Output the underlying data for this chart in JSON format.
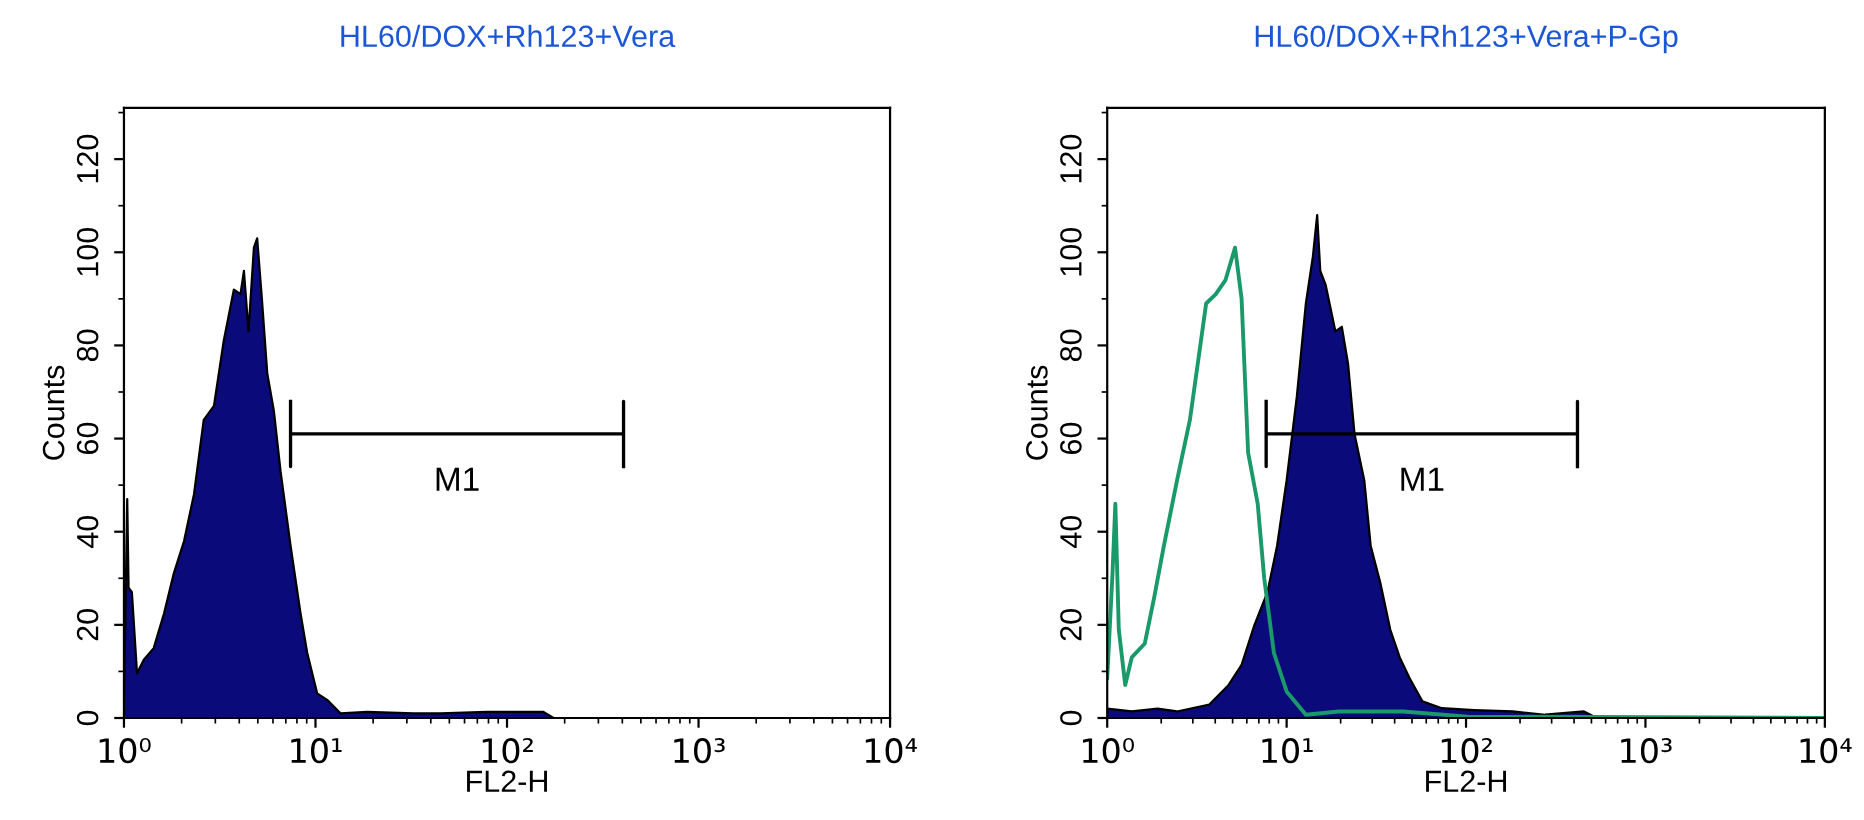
{
  "chart_data": [
    {
      "type": "area",
      "title": "HL60/DOX+Rh123+Vera",
      "xlabel": "FL2-H",
      "ylabel": "Counts",
      "log": "x",
      "xlim": [
        1,
        10000
      ],
      "ylim": [
        0,
        131
      ],
      "xticks": [
        {
          "value": 1,
          "label": "10⁰"
        },
        {
          "value": 10,
          "label": "10¹"
        },
        {
          "value": 100,
          "label": "10²"
        },
        {
          "value": 1000,
          "label": "10³"
        },
        {
          "value": 10000,
          "label": "10⁴"
        }
      ],
      "yticks": [
        0,
        20,
        40,
        60,
        80,
        100,
        120
      ],
      "series": [
        {
          "color": "#0a0a7a",
          "x": [
            1.0,
            1.04,
            1.057,
            1.1,
            1.17,
            1.27,
            1.43,
            1.62,
            1.82,
            2.06,
            2.32,
            2.61,
            2.95,
            3.32,
            3.75,
            4.06,
            4.23,
            4.47,
            4.77,
            4.96,
            5.25,
            5.6,
            6.06,
            6.57,
            7.41,
            8.35,
            9.05,
            10.2,
            11.5,
            13.5,
            18.6,
            32.6,
            44.9,
            78.7,
            155,
            175,
            10000
          ],
          "values": [
            2.4,
            47,
            28,
            27,
            9.6,
            12.5,
            15,
            22.5,
            31,
            38,
            48,
            64,
            67,
            81,
            92,
            91,
            96,
            83,
            101,
            103,
            90,
            74,
            66,
            53,
            37,
            22.5,
            14,
            5.3,
            3.9,
            1,
            1.3,
            1,
            1,
            1.3,
            1.3,
            0,
            0
          ]
        },
        {
          "type": "line",
          "color": "#000000",
          "x": [
            7.41,
            7.41,
            7.41,
            406,
            406,
            406
          ],
          "values": [
            68,
            54,
            61,
            61,
            68,
            54
          ]
        }
      ],
      "annotations": [
        "M1"
      ]
    },
    {
      "type": "area",
      "title": "HL60/DOX+Rh123+Vera+P-Gp",
      "xlabel": "FL2-H",
      "ylabel": "Counts",
      "log": "x",
      "xlim": [
        1,
        10000
      ],
      "ylim": [
        0,
        131
      ],
      "xticks": [
        {
          "value": 1,
          "label": "10⁰"
        },
        {
          "value": 10,
          "label": "10¹"
        },
        {
          "value": 100,
          "label": "10²"
        },
        {
          "value": 1000,
          "label": "10³"
        },
        {
          "value": 10000,
          "label": "10⁴"
        }
      ],
      "yticks": [
        0,
        20,
        40,
        60,
        80,
        100,
        120
      ],
      "series": [
        {
          "color": "#0a0a7a",
          "x": [
            1,
            1.37,
            1.91,
            2.45,
            3.71,
            4.75,
            5.61,
            6.62,
            7.82,
            8.85,
            10.0,
            11.4,
            12.8,
            14.0,
            14.8,
            15.4,
            16.5,
            18.7,
            20.3,
            22.0,
            23.9,
            27.1,
            29.4,
            33.3,
            37.8,
            42.7,
            48.4,
            57.1,
            73.3,
            111,
            182,
            276,
            454,
            536,
            10000
          ],
          "values": [
            2,
            1.4,
            2,
            1.4,
            2.9,
            7.1,
            11.4,
            20,
            27,
            37,
            51,
            69,
            89,
            99,
            108,
            96,
            93,
            83,
            84,
            76,
            61,
            51,
            37,
            29,
            19,
            13,
            8.6,
            3.6,
            2.1,
            1.7,
            1.4,
            0.7,
            1.4,
            0,
            0
          ]
        },
        {
          "type": "line",
          "color": "#1a9a6a",
          "x": [
            1,
            1.07,
            1.11,
            1.16,
            1.26,
            1.37,
            1.62,
            1.83,
            2.07,
            2.45,
            2.89,
            3.56,
            4.03,
            4.56,
            5.16,
            5.61,
            6.1,
            6.9,
            7.5,
            8.49,
            10.0,
            12.8,
            19.5,
            44.6,
            102,
            10000
          ],
          "values": [
            8.6,
            31,
            46,
            19,
            7.1,
            13,
            16,
            26,
            37,
            51,
            64,
            89,
            91,
            94,
            101,
            90,
            57,
            46,
            30,
            14,
            5.7,
            0.7,
            1.4,
            1.4,
            0.3,
            0
          ]
        },
        {
          "type": "line",
          "color": "#000000",
          "x": [
            7.69,
            7.69,
            7.69,
            418,
            418,
            418
          ],
          "values": [
            68,
            54,
            61,
            61,
            68,
            54
          ]
        }
      ],
      "annotations": [
        "M1"
      ]
    }
  ]
}
